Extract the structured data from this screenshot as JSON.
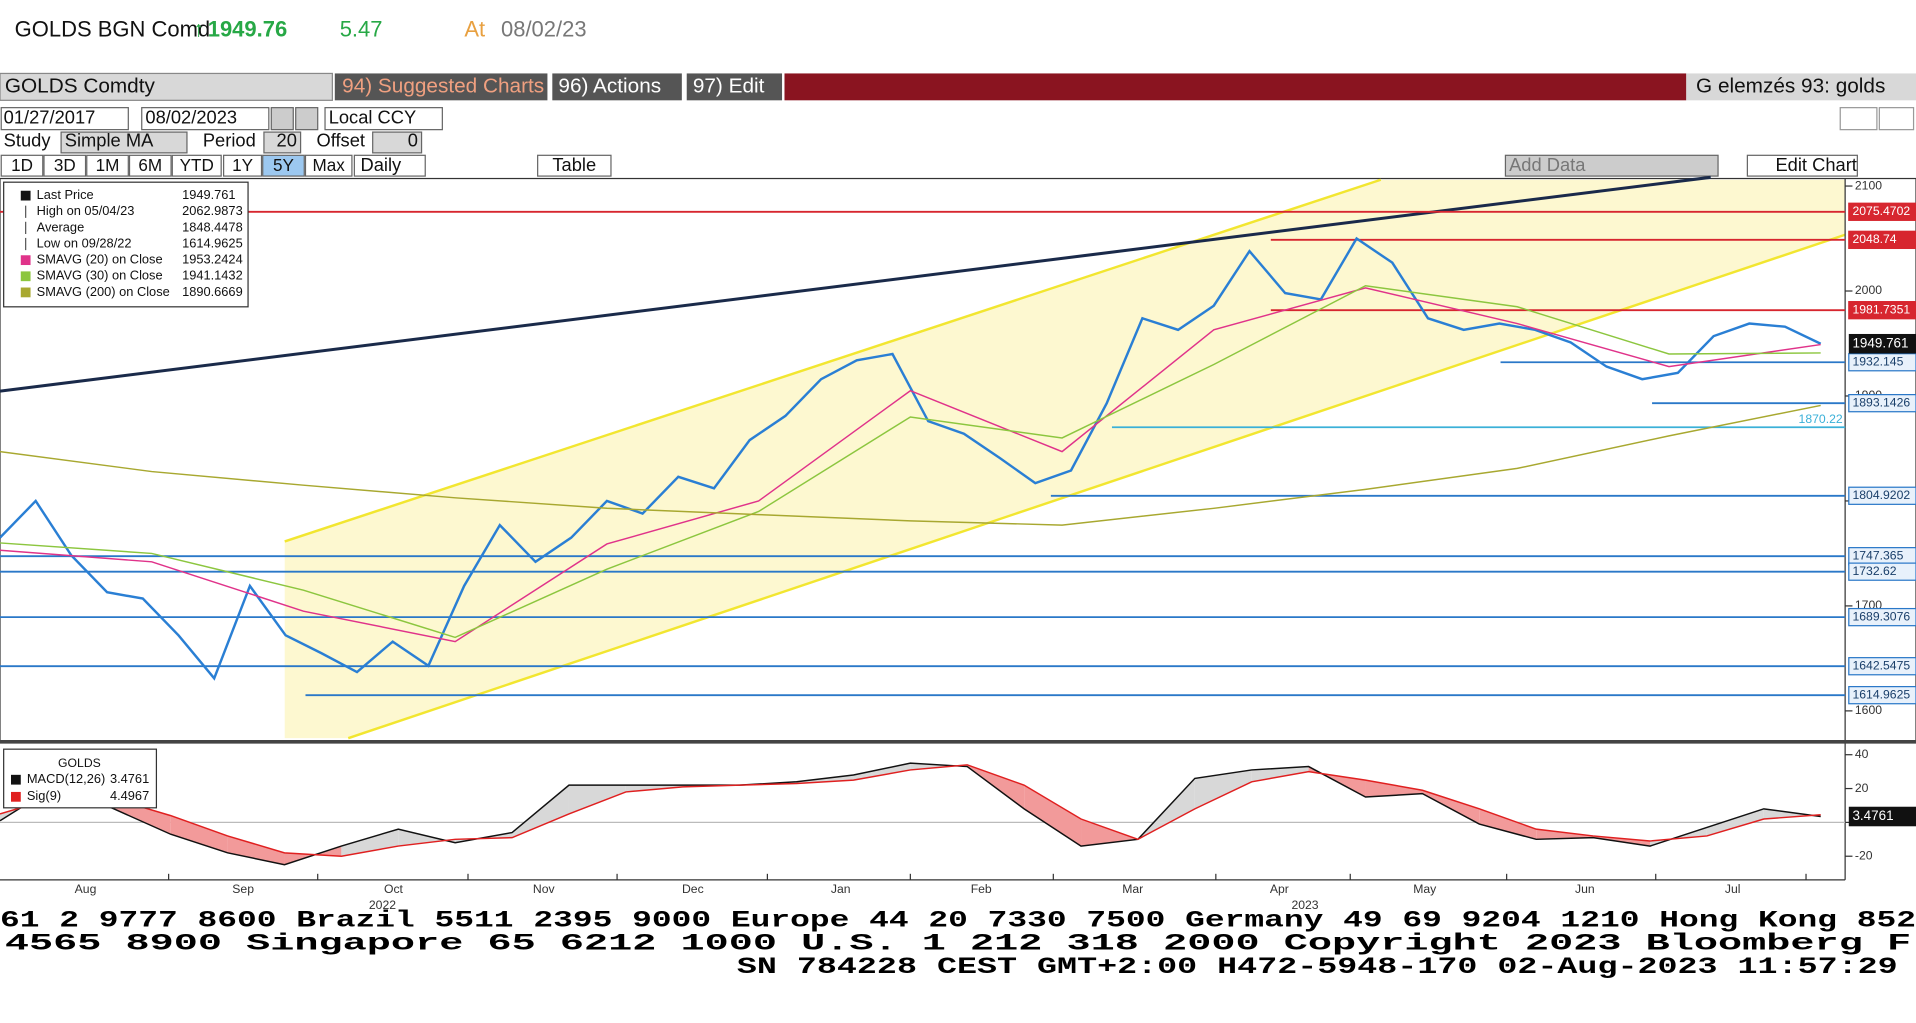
{
  "header": {
    "security": "GOLDS BGN Comd",
    "price": "1949.76",
    "change": "5.47",
    "at": "At",
    "date": "08/02/23"
  },
  "toolbar": {
    "ticker": "GOLDS Comdty",
    "menus": [
      "94) Suggested Charts",
      "96) Actions",
      "97) Edit"
    ],
    "analysis": "G elemzés 93: golds",
    "start_date": "01/27/2017",
    "end_date": "08/02/2023",
    "currency": "Local CCY",
    "study_label": "Study",
    "study": "Simple MA",
    "period_label": "Period",
    "period": "20",
    "offset_label": "Offset",
    "offset": "0",
    "ranges": [
      "1D",
      "3D",
      "1M",
      "6M",
      "YTD",
      "1Y",
      "5Y",
      "Max"
    ],
    "frequency": "Daily",
    "table": "Table",
    "add_data": "Add Data",
    "edit_chart": "Edit Chart"
  },
  "chart_data": [
    {
      "type": "line",
      "ylim": [
        1574,
        2106
      ],
      "yticks": [
        1600,
        1700,
        1800,
        1900,
        2000,
        2100
      ],
      "series": [
        {
          "name": "Last Price",
          "color": "#2a7fd4",
          "legend_value": 1949.761,
          "values": [
            1765,
            1800,
            1748,
            1713,
            1707,
            1672,
            1631,
            1719,
            1672,
            1655,
            1637,
            1666,
            1643,
            1719,
            1777,
            1742,
            1765,
            1800,
            1788,
            1823,
            1812,
            1858,
            1881,
            1916,
            1934,
            1940,
            1876,
            1864,
            1841,
            1817,
            1829,
            1893,
            1974,
            1963,
            1986,
            2038,
            1998,
            1992,
            2050,
            2027,
            1974,
            1963,
            1969,
            1963,
            1951,
            1928,
            1916,
            1922,
            1957,
            1969,
            1966,
            1949.761
          ]
        },
        {
          "name": "SMAVG (20)  on Close",
          "color": "#e0338a",
          "legend_value": 1953.2424,
          "values": [
            1753,
            1742,
            1695,
            1666,
            1759,
            1800,
            1905,
            1847,
            1963,
            2003,
            1969,
            1928,
            1949
          ]
        },
        {
          "name": "SMAVG (30)  on Close",
          "color": "#8cc63f",
          "legend_value": 1941.1432,
          "values": [
            1760,
            1750,
            1715,
            1670,
            1735,
            1790,
            1880,
            1860,
            1930,
            2005,
            1985,
            1940,
            1941
          ]
        },
        {
          "name": "SMAVG (200)  on Close",
          "color": "#a8a830",
          "legend_value": 1890.6669,
          "values": [
            1847,
            1828,
            1815,
            1803,
            1793,
            1787,
            1781,
            1777,
            1793,
            1811,
            1831,
            1862,
            1891
          ]
        }
      ],
      "stats": [
        {
          "label": "High on 05/04/23",
          "value": 2062.9873
        },
        {
          "label": "Average",
          "value": 1848.4478
        },
        {
          "label": "Low on 09/28/22",
          "value": 1614.9625
        }
      ],
      "levels": [
        {
          "value": 2075.4702,
          "color": "#d7262f"
        },
        {
          "value": 2048.74,
          "color": "#d7262f"
        },
        {
          "value": 1981.7351,
          "color": "#d7262f"
        },
        {
          "value": 1932.145,
          "color": "#2a78c8"
        },
        {
          "value": 1893.1426,
          "color": "#2a78c8"
        },
        {
          "value": 1870.22,
          "color": "#3ab0d8"
        },
        {
          "value": 1804.9202,
          "color": "#2a78c8"
        },
        {
          "value": 1747.365,
          "color": "#2a78c8"
        },
        {
          "value": 1732.62,
          "color": "#2a78c8"
        },
        {
          "value": 1689.3076,
          "color": "#2a78c8"
        },
        {
          "value": 1642.5475,
          "color": "#2a78c8"
        },
        {
          "value": 1614.9625,
          "color": "#2a78c8"
        }
      ]
    },
    {
      "type": "line",
      "title": "GOLDS",
      "ylim": [
        -34,
        44
      ],
      "yticks": [
        -20,
        0,
        20,
        40
      ],
      "series": [
        {
          "name": "MACD(12,26)",
          "color": "#111111",
          "legend_value": 3.4761,
          "values": [
            1,
            22,
            8,
            -7,
            -18,
            -25,
            -14,
            -4,
            -12,
            -6,
            22,
            22,
            22,
            22,
            24,
            28,
            35,
            33,
            8,
            -14,
            -10,
            26,
            31,
            33,
            15,
            17,
            -1,
            -10,
            -9,
            -14,
            -3,
            8,
            3.4761
          ]
        },
        {
          "name": "Sig(9)",
          "color": "#e02020",
          "legend_value": 4.4967,
          "values": [
            5,
            15,
            14,
            4,
            -8,
            -18,
            -20,
            -14,
            -10,
            -9,
            5,
            18,
            21,
            22,
            23,
            25,
            31,
            34,
            22,
            2,
            -10,
            8,
            24,
            30,
            25,
            19,
            8,
            -4,
            -8,
            -11,
            -8,
            2,
            4.4967
          ]
        }
      ]
    }
  ],
  "x_axis": {
    "months": [
      "Aug",
      "Sep",
      "Oct",
      "Nov",
      "Dec",
      "Jan",
      "Feb",
      "Mar",
      "Apr",
      "May",
      "Jun",
      "Jul"
    ],
    "years": [
      "2022",
      "2023"
    ]
  },
  "footer": {
    "lines": [
      "61 2 9777 8600 Brazil 5511 2395 9000 Europe 44 20 7330 7500 Germany 49 69 9204 1210 Hong Kong 852",
      "4565 8900       Singapore 65 6212 1000       U.S. 1 212 318 2000       Copyright 2023 Bloomberg F",
      "SN 784228 CEST GMT+2:00 H472-5948-170 02-Aug-2023 11:57:29"
    ]
  }
}
